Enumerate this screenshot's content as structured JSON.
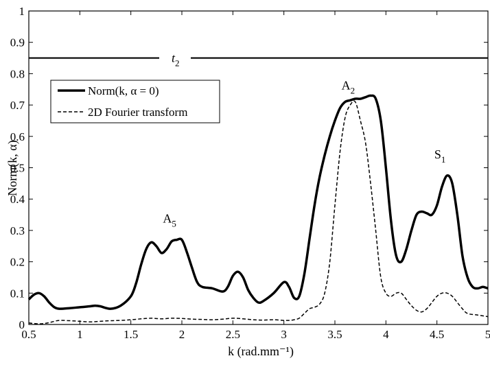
{
  "chart_data": {
    "type": "line",
    "xlabel": "k (rad.mm⁻¹)",
    "ylabel": "Norm(k, α)",
    "xlim": [
      0.5,
      5
    ],
    "ylim": [
      0,
      1
    ],
    "x_ticks": [
      "0.5",
      "1",
      "1.5",
      "2",
      "2.5",
      "3",
      "3.5",
      "4",
      "4.5",
      "5"
    ],
    "y_ticks": [
      "0",
      "0.1",
      "0.2",
      "0.3",
      "0.4",
      "0.5",
      "0.6",
      "0.7",
      "0.8",
      "0.9",
      "1"
    ],
    "grid": false,
    "legend_position": "top-left",
    "series": [
      {
        "name": "Norm(k, α = 0)",
        "style": "solid-thick",
        "x": [
          0.5,
          0.55,
          0.6,
          0.65,
          0.7,
          0.75,
          0.8,
          0.9,
          1.0,
          1.1,
          1.15,
          1.2,
          1.3,
          1.4,
          1.5,
          1.55,
          1.6,
          1.65,
          1.7,
          1.75,
          1.8,
          1.85,
          1.9,
          1.95,
          2.0,
          2.05,
          2.1,
          2.15,
          2.2,
          2.3,
          2.4,
          2.45,
          2.5,
          2.55,
          2.6,
          2.65,
          2.7,
          2.75,
          2.8,
          2.9,
          3.0,
          3.05,
          3.1,
          3.15,
          3.2,
          3.25,
          3.3,
          3.35,
          3.4,
          3.45,
          3.5,
          3.55,
          3.6,
          3.65,
          3.7,
          3.75,
          3.8,
          3.85,
          3.9,
          3.95,
          4.0,
          4.05,
          4.1,
          4.15,
          4.2,
          4.25,
          4.3,
          4.35,
          4.4,
          4.45,
          4.5,
          4.55,
          4.6,
          4.65,
          4.7,
          4.75,
          4.8,
          4.85,
          4.9,
          4.95,
          5.0
        ],
        "y": [
          0.08,
          0.095,
          0.1,
          0.09,
          0.07,
          0.055,
          0.05,
          0.052,
          0.055,
          0.058,
          0.06,
          0.058,
          0.05,
          0.06,
          0.09,
          0.13,
          0.19,
          0.24,
          0.262,
          0.25,
          0.228,
          0.24,
          0.265,
          0.27,
          0.27,
          0.23,
          0.18,
          0.135,
          0.12,
          0.115,
          0.105,
          0.12,
          0.155,
          0.168,
          0.15,
          0.11,
          0.085,
          0.07,
          0.075,
          0.1,
          0.135,
          0.12,
          0.085,
          0.09,
          0.16,
          0.27,
          0.38,
          0.47,
          0.54,
          0.6,
          0.65,
          0.69,
          0.71,
          0.715,
          0.72,
          0.72,
          0.725,
          0.73,
          0.72,
          0.65,
          0.5,
          0.33,
          0.22,
          0.2,
          0.24,
          0.3,
          0.35,
          0.36,
          0.355,
          0.35,
          0.38,
          0.44,
          0.475,
          0.45,
          0.35,
          0.22,
          0.15,
          0.12,
          0.115,
          0.12,
          0.115
        ]
      },
      {
        "name": "2D Fourier transform",
        "style": "dashed",
        "x": [
          0.5,
          0.55,
          0.6,
          0.65,
          0.7,
          0.75,
          0.8,
          0.9,
          1.0,
          1.1,
          1.2,
          1.3,
          1.4,
          1.5,
          1.6,
          1.7,
          1.8,
          1.9,
          2.0,
          2.1,
          2.2,
          2.3,
          2.4,
          2.5,
          2.6,
          2.7,
          2.8,
          2.9,
          3.0,
          3.05,
          3.1,
          3.15,
          3.2,
          3.25,
          3.3,
          3.35,
          3.4,
          3.45,
          3.5,
          3.55,
          3.6,
          3.65,
          3.7,
          3.75,
          3.8,
          3.85,
          3.9,
          3.95,
          4.0,
          4.05,
          4.1,
          4.15,
          4.2,
          4.25,
          4.3,
          4.35,
          4.4,
          4.45,
          4.5,
          4.55,
          4.6,
          4.65,
          4.7,
          4.75,
          4.8,
          4.9,
          5.0
        ],
        "y": [
          0.005,
          0.003,
          0.002,
          0.003,
          0.006,
          0.01,
          0.013,
          0.012,
          0.01,
          0.008,
          0.01,
          0.012,
          0.013,
          0.015,
          0.018,
          0.02,
          0.018,
          0.02,
          0.019,
          0.017,
          0.016,
          0.015,
          0.017,
          0.02,
          0.018,
          0.015,
          0.014,
          0.015,
          0.013,
          0.013,
          0.015,
          0.02,
          0.035,
          0.05,
          0.055,
          0.065,
          0.1,
          0.2,
          0.38,
          0.55,
          0.66,
          0.7,
          0.71,
          0.65,
          0.58,
          0.45,
          0.3,
          0.15,
          0.1,
          0.09,
          0.1,
          0.1,
          0.08,
          0.06,
          0.045,
          0.04,
          0.05,
          0.07,
          0.09,
          0.1,
          0.1,
          0.09,
          0.07,
          0.05,
          0.035,
          0.03,
          0.025
        ]
      }
    ],
    "reference_lines": [
      {
        "label": "t",
        "label_sub": "2",
        "y": 0.85
      }
    ],
    "annotations": [
      {
        "text": "A",
        "sub": "5",
        "x": 1.88,
        "y": 0.325
      },
      {
        "text": "A",
        "sub": "2",
        "x": 3.63,
        "y": 0.75
      },
      {
        "text": "S",
        "sub": "1",
        "x": 4.53,
        "y": 0.53
      }
    ]
  }
}
